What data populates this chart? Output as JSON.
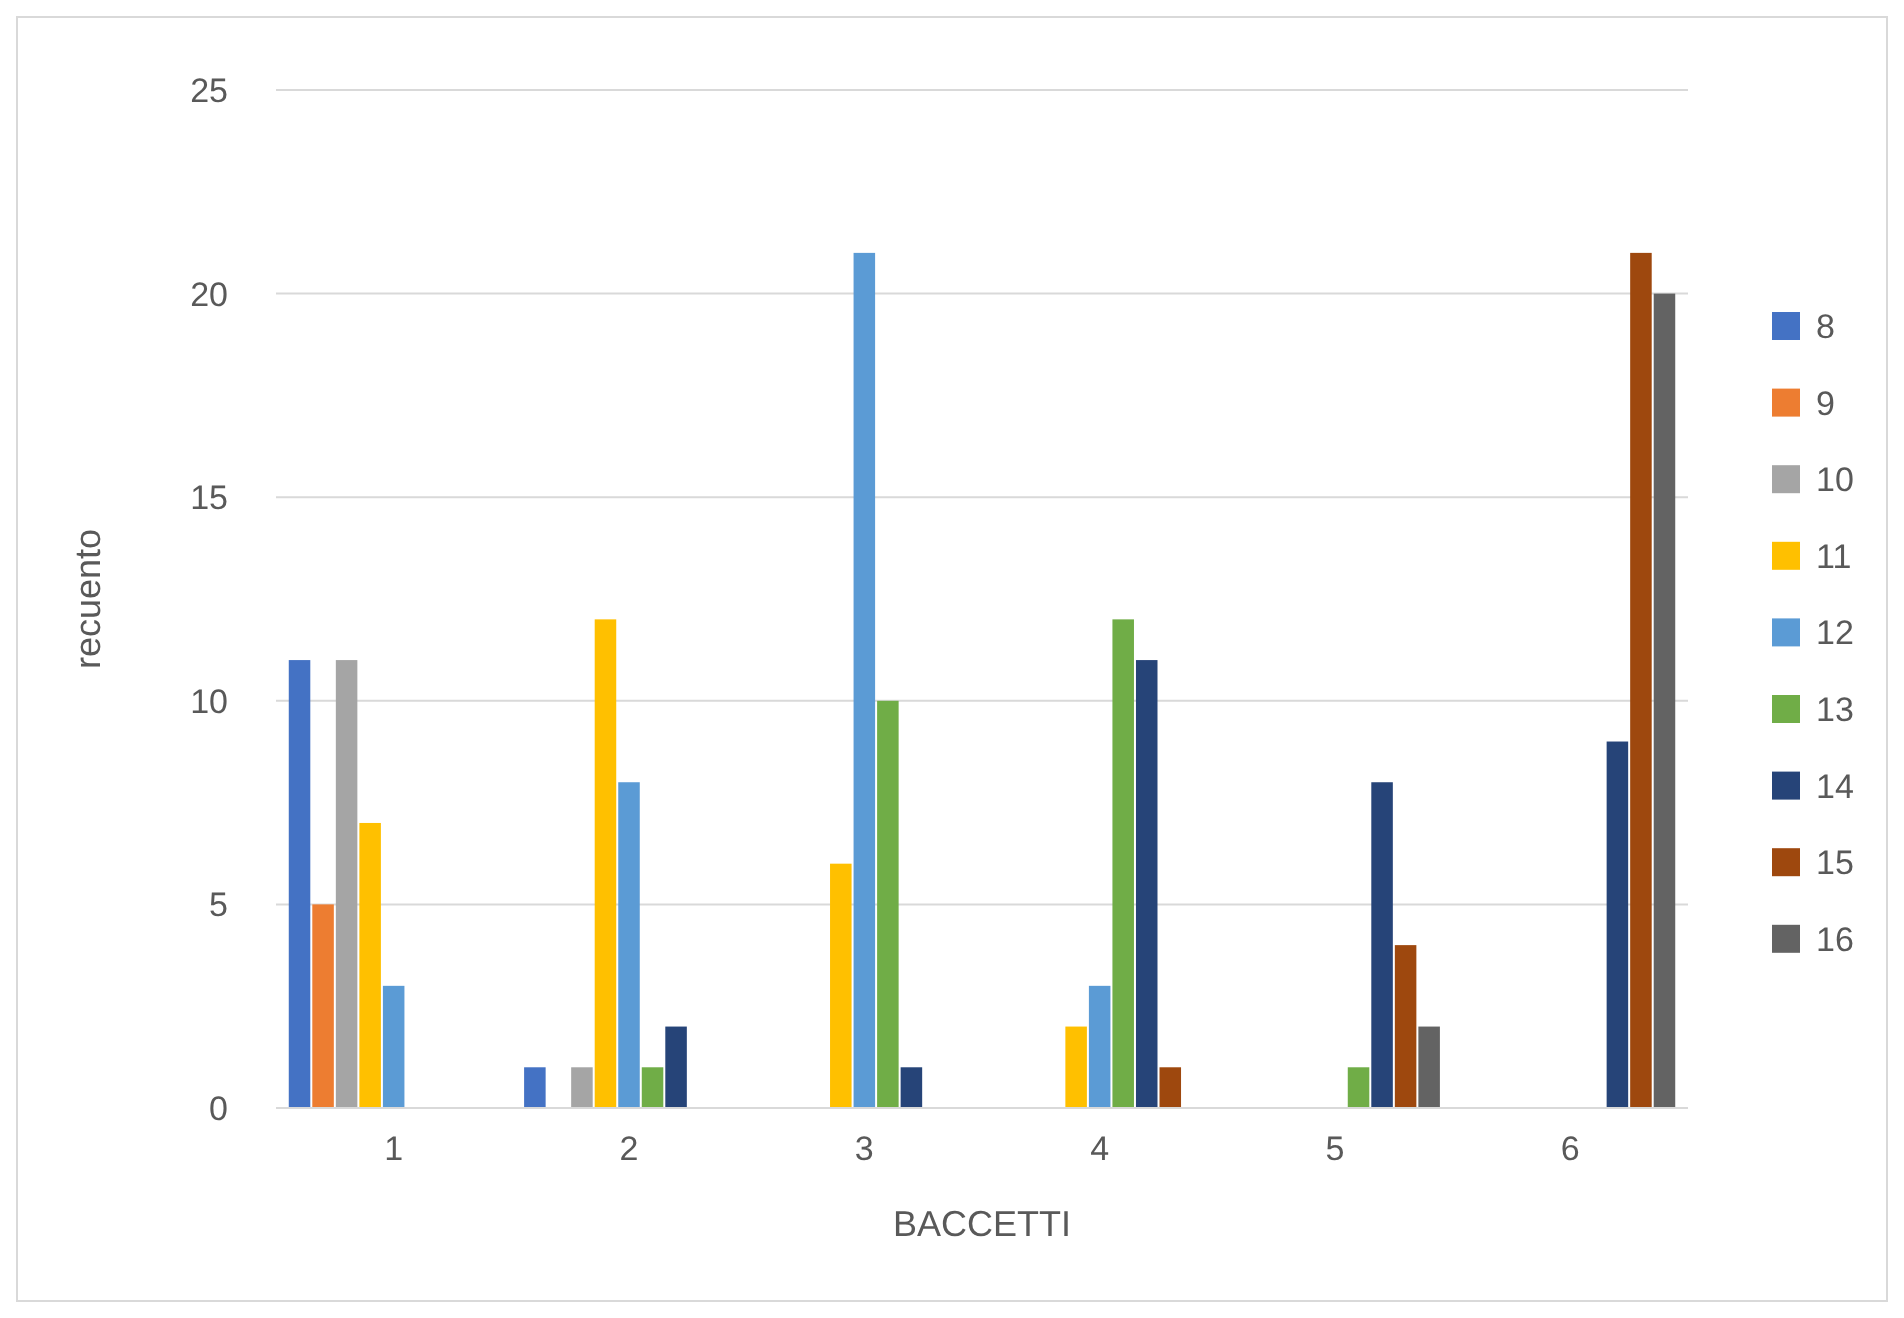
{
  "chart_data": {
    "type": "bar",
    "xlabel": "BACCETTI",
    "ylabel": "recuento",
    "categories": [
      "1",
      "2",
      "3",
      "4",
      "5",
      "6"
    ],
    "series": [
      {
        "name": "8",
        "color": "#4472c4",
        "values": [
          11,
          1,
          null,
          null,
          null,
          null
        ]
      },
      {
        "name": "9",
        "color": "#ed7d31",
        "values": [
          5,
          null,
          null,
          null,
          null,
          null
        ]
      },
      {
        "name": "10",
        "color": "#a5a5a5",
        "values": [
          11,
          1,
          null,
          null,
          null,
          null
        ]
      },
      {
        "name": "11",
        "color": "#ffc000",
        "values": [
          7,
          12,
          6,
          2,
          null,
          null
        ]
      },
      {
        "name": "12",
        "color": "#5b9bd5",
        "values": [
          3,
          8,
          21,
          3,
          null,
          null
        ]
      },
      {
        "name": "13",
        "color": "#70ad47",
        "values": [
          null,
          1,
          10,
          12,
          1,
          null
        ]
      },
      {
        "name": "14",
        "color": "#264478",
        "values": [
          null,
          2,
          1,
          11,
          8,
          9
        ]
      },
      {
        "name": "15",
        "color": "#9e480e",
        "values": [
          null,
          null,
          null,
          1,
          4,
          21
        ]
      },
      {
        "name": "16",
        "color": "#636363",
        "values": [
          null,
          null,
          null,
          null,
          2,
          20
        ]
      }
    ],
    "ylim": [
      0,
      25
    ],
    "yticks": [
      0,
      5,
      10,
      15,
      20,
      25
    ],
    "grid": "y",
    "legend": "right"
  }
}
